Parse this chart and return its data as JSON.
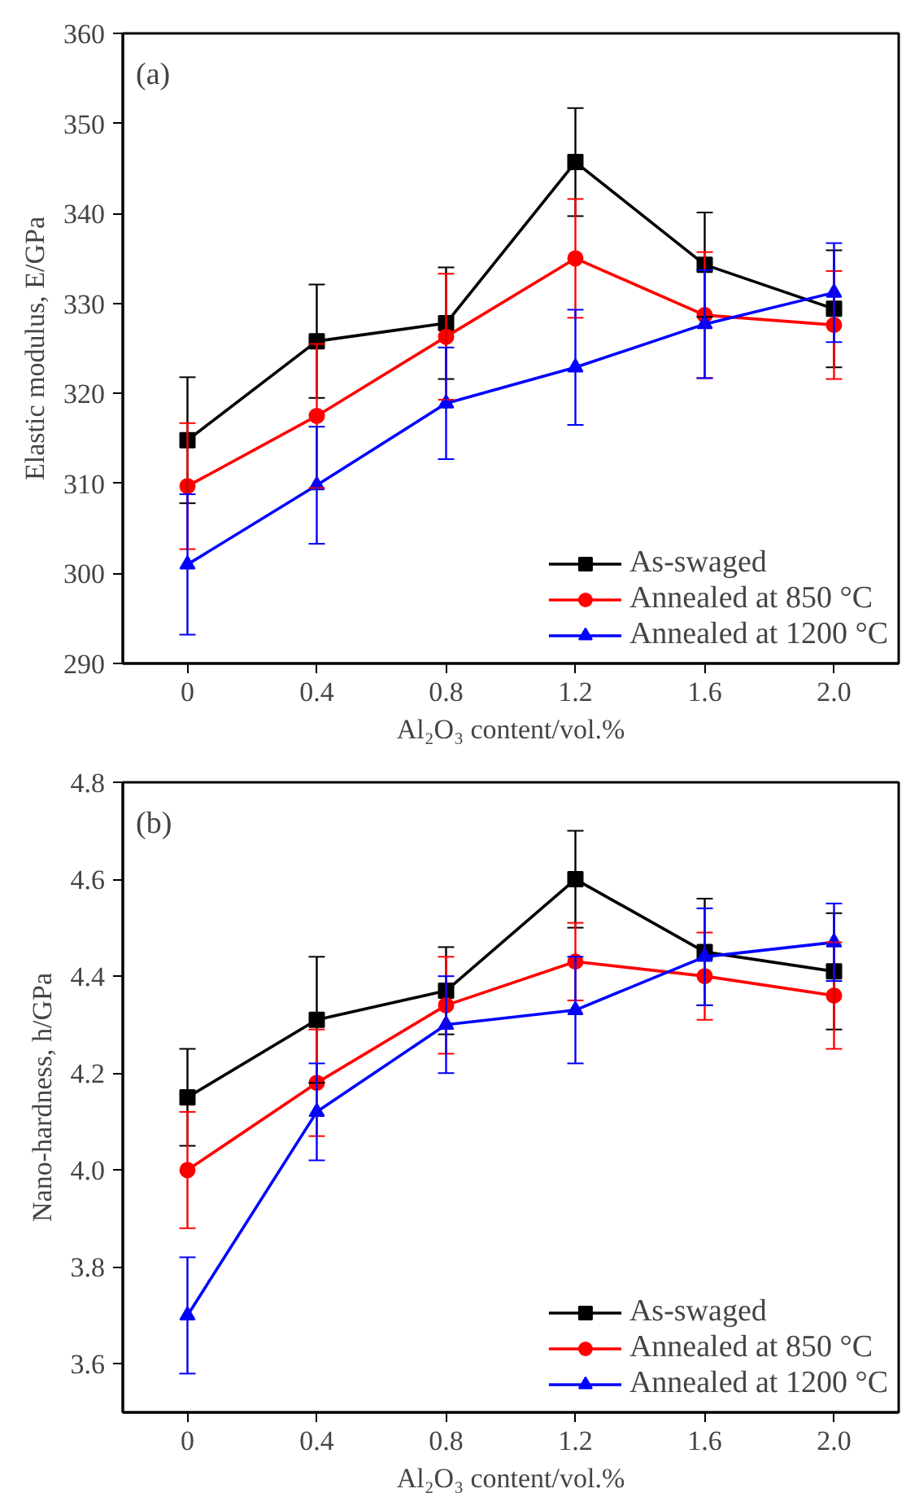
{
  "chart_data": [
    {
      "type": "line",
      "annotations": [
        "(a)"
      ],
      "xlabel": "Al₂O₃ content/vol.%",
      "ylabel": "Elastic modulus, E/GPa",
      "x": [
        0,
        0.4,
        0.8,
        1.2,
        1.6,
        2.0
      ],
      "xlim": [
        -0.2,
        2.2
      ],
      "xticks": [
        0,
        0.4,
        0.8,
        1.2,
        1.6,
        {
          "value": 2.0,
          "label": "2.0"
        }
      ],
      "ylim": [
        290,
        360
      ],
      "yticks": [
        290,
        300,
        310,
        320,
        330,
        340,
        350,
        360
      ],
      "grid": false,
      "legend": "bottom right",
      "line_style": "solid",
      "series": [
        {
          "name": "As-swaged",
          "color": "#000000",
          "marker": "square",
          "values": [
            314.8,
            325.8,
            327.8,
            345.7,
            334.3,
            329.4
          ],
          "errors": [
            7.0,
            6.3,
            6.2,
            6.0,
            5.8,
            6.5
          ]
        },
        {
          "name": "Annealed at 850 °C",
          "color": "#ff0000",
          "marker": "circle",
          "values": [
            309.7,
            317.5,
            326.3,
            335.0,
            328.7,
            327.6
          ],
          "errors": [
            7.0,
            8.0,
            7.0,
            6.6,
            7.0,
            6.0
          ]
        },
        {
          "name": "Annealed at 1200 °C",
          "color": "#0000ff",
          "marker": "triangle",
          "values": [
            301.0,
            309.8,
            318.9,
            322.9,
            327.7,
            331.2
          ],
          "errors": [
            7.8,
            6.5,
            6.2,
            6.4,
            6.0,
            5.5
          ]
        }
      ]
    },
    {
      "type": "line",
      "annotations": [
        "(b)"
      ],
      "xlabel": "Al₂O₃ content/vol.%",
      "ylabel": "Nano-hardness, h/GPa",
      "x": [
        0,
        0.4,
        0.8,
        1.2,
        1.6,
        2.0
      ],
      "xlim": [
        -0.2,
        2.2
      ],
      "xticks": [
        0,
        0.4,
        0.8,
        1.2,
        1.6,
        {
          "value": 2.0,
          "label": "2.0"
        }
      ],
      "ylim": [
        3.5,
        4.8
      ],
      "yticks": [
        3.6,
        3.8,
        {
          "value": 4.0,
          "label": "4.0"
        },
        4.2,
        4.4,
        4.6,
        4.8
      ],
      "grid": false,
      "legend": "bottom right",
      "line_style": "solid",
      "series": [
        {
          "name": "As-swaged",
          "color": "#000000",
          "marker": "square",
          "values": [
            4.15,
            4.31,
            4.37,
            4.6,
            4.45,
            4.41
          ],
          "errors": [
            0.1,
            0.13,
            0.09,
            0.1,
            0.11,
            0.12
          ]
        },
        {
          "name": "Annealed at 850 °C",
          "color": "#ff0000",
          "marker": "circle",
          "values": [
            4.0,
            4.18,
            4.34,
            4.43,
            4.4,
            4.36
          ],
          "errors": [
            0.12,
            0.11,
            0.1,
            0.08,
            0.09,
            0.11
          ]
        },
        {
          "name": "Annealed at 1200 °C",
          "color": "#0000ff",
          "marker": "triangle",
          "values": [
            3.7,
            4.12,
            4.3,
            4.33,
            4.44,
            4.47
          ],
          "errors": [
            0.12,
            0.1,
            0.1,
            0.11,
            0.1,
            0.08
          ]
        }
      ]
    }
  ]
}
